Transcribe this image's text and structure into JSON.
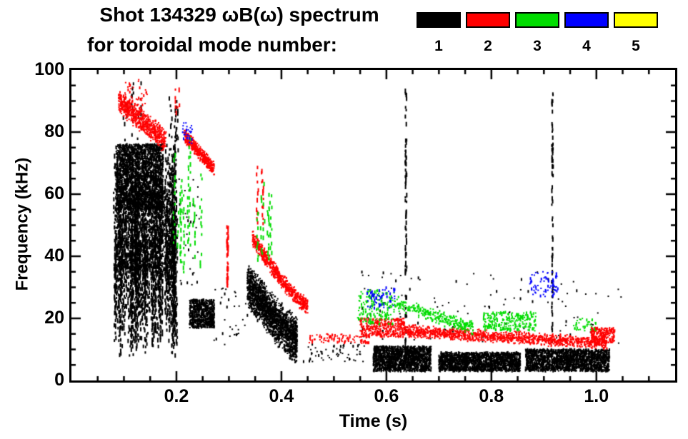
{
  "title": {
    "line1": "Shot 134329 ωB(ω) spectrum",
    "line2": "for toroidal mode number:"
  },
  "legend": [
    {
      "label": "1",
      "color": "#000000"
    },
    {
      "label": "2",
      "color": "#ff0000"
    },
    {
      "label": "3",
      "color": "#00dd00"
    },
    {
      "label": "4",
      "color": "#0000ff"
    },
    {
      "label": "5",
      "color": "#ffff00"
    }
  ],
  "chart_data": {
    "type": "scatter",
    "title": "Shot 134329 ωB(ω) spectrum for toroidal mode number 1-5",
    "xlabel": "Time (s)",
    "ylabel": "Frequency (kHz)",
    "xlim": [
      0.0,
      1.15
    ],
    "ylim": [
      0,
      100
    ],
    "xticks": [
      "0.2",
      "0.4",
      "0.6",
      "0.8",
      "1.0"
    ],
    "xtick_values": [
      0.2,
      0.4,
      0.6,
      0.8,
      1.0
    ],
    "yticks": [
      "0",
      "20",
      "40",
      "60",
      "80",
      "100"
    ],
    "ytick_values": [
      0,
      20,
      40,
      60,
      80,
      100
    ],
    "xminor": 0.05,
    "yminor": 5,
    "grid": false,
    "legend_position": "top-right",
    "clusters": [
      {
        "mode": 1,
        "kind": "vstreaks",
        "t": [
          0.08,
          0.2
        ],
        "fBase": [
          8,
          38
        ],
        "fTop": [
          42,
          78
        ],
        "streaks": 170
      },
      {
        "mode": 1,
        "kind": "blob",
        "t": [
          0.085,
          0.175
        ],
        "f": [
          55,
          76
        ],
        "count": 2200
      },
      {
        "mode": 1,
        "kind": "blob",
        "t": [
          0.085,
          0.195
        ],
        "f": [
          35,
          60
        ],
        "count": 1000
      },
      {
        "mode": 1,
        "kind": "vstreaks",
        "t": [
          0.095,
          0.14
        ],
        "fBase": [
          78,
          88
        ],
        "fTop": [
          90,
          100
        ],
        "streaks": 6
      },
      {
        "mode": 1,
        "kind": "vstreaks",
        "t": [
          0.185,
          0.205
        ],
        "fBase": [
          62,
          80
        ],
        "fTop": [
          84,
          94
        ],
        "streaks": 5
      },
      {
        "mode": 1,
        "kind": "blob",
        "t": [
          0.205,
          0.245
        ],
        "f": [
          30,
          65
        ],
        "count": 30
      },
      {
        "mode": 1,
        "kind": "blob",
        "t": [
          0.225,
          0.272
        ],
        "f": [
          17,
          26
        ],
        "count": 650
      },
      {
        "mode": 1,
        "kind": "chirp",
        "t": [
          0.335,
          0.43
        ],
        "fStart": 31,
        "fEnd": 13,
        "width": 13,
        "curve": 1.2,
        "count": 2000
      },
      {
        "mode": 1,
        "kind": "blob",
        "t": [
          0.575,
          0.685
        ],
        "f": [
          3,
          11
        ],
        "count": 1500
      },
      {
        "mode": 1,
        "kind": "blob",
        "t": [
          0.7,
          0.855
        ],
        "f": [
          3,
          9
        ],
        "count": 1700
      },
      {
        "mode": 1,
        "kind": "blob",
        "t": [
          0.865,
          1.025
        ],
        "f": [
          3,
          10
        ],
        "count": 1800
      },
      {
        "mode": 1,
        "kind": "spike",
        "t": 0.636,
        "f": [
          12,
          96
        ],
        "count": 75
      },
      {
        "mode": 1,
        "kind": "spike",
        "t": 0.915,
        "f": [
          12,
          93
        ],
        "count": 70
      },
      {
        "mode": 1,
        "kind": "blob",
        "t": [
          0.55,
          1.05
        ],
        "f": [
          12,
          35
        ],
        "count": 110
      },
      {
        "mode": 1,
        "kind": "blob",
        "t": [
          0.44,
          0.56
        ],
        "f": [
          6,
          12
        ],
        "count": 55
      },
      {
        "mode": 1,
        "kind": "blob",
        "t": [
          0.27,
          0.34
        ],
        "f": [
          10,
          30
        ],
        "count": 35
      },
      {
        "mode": 2,
        "kind": "chirp",
        "t": [
          0.09,
          0.18
        ],
        "fStart": 90,
        "fEnd": 77,
        "width": 7,
        "curve": 1.0,
        "count": 650
      },
      {
        "mode": 2,
        "kind": "blob",
        "t": [
          0.1,
          0.145
        ],
        "f": [
          86,
          97
        ],
        "count": 40
      },
      {
        "mode": 2,
        "kind": "chirp",
        "t": [
          0.215,
          0.272
        ],
        "fStart": 79,
        "fEnd": 68,
        "width": 4,
        "curve": 1.0,
        "count": 420
      },
      {
        "mode": 2,
        "kind": "spike",
        "t": 0.296,
        "f": [
          30,
          50
        ],
        "count": 45
      },
      {
        "mode": 2,
        "kind": "chirp",
        "t": [
          0.345,
          0.45
        ],
        "fStart": 46,
        "fEnd": 24,
        "width": 4.5,
        "curve": 1.3,
        "count": 650
      },
      {
        "mode": 2,
        "kind": "vstreaks",
        "t": [
          0.35,
          0.372
        ],
        "fBase": [
          50,
          58
        ],
        "fTop": [
          60,
          72
        ],
        "streaks": 5
      },
      {
        "mode": 2,
        "kind": "band",
        "t": [
          0.45,
          0.57
        ],
        "f": [
          12,
          15
        ],
        "count": 90
      },
      {
        "mode": 2,
        "kind": "blob",
        "t": [
          0.55,
          0.635
        ],
        "f": [
          14,
          20
        ],
        "count": 330
      },
      {
        "mode": 2,
        "kind": "chirp",
        "t": [
          0.63,
          1.02
        ],
        "fStart": 16,
        "fEnd": 12,
        "width": 3.5,
        "curve": 1.0,
        "count": 1200
      },
      {
        "mode": 2,
        "kind": "blob",
        "t": [
          0.99,
          1.035
        ],
        "f": [
          12,
          17
        ],
        "count": 220
      },
      {
        "mode": 2,
        "kind": "vstreaks",
        "t": [
          0.19,
          0.21
        ],
        "fBase": [
          86,
          90
        ],
        "fTop": [
          92,
          96
        ],
        "streaks": 3
      },
      {
        "mode": 3,
        "kind": "vstreaks",
        "t": [
          0.195,
          0.248
        ],
        "fBase": [
          33,
          45
        ],
        "fTop": [
          52,
          80
        ],
        "streaks": 9
      },
      {
        "mode": 3,
        "kind": "vstreaks",
        "t": [
          0.345,
          0.382
        ],
        "fBase": [
          38,
          48
        ],
        "fTop": [
          54,
          66
        ],
        "streaks": 7
      },
      {
        "mode": 3,
        "kind": "blob",
        "t": [
          0.545,
          0.615
        ],
        "f": [
          18,
          29
        ],
        "count": 170
      },
      {
        "mode": 3,
        "kind": "chirp",
        "t": [
          0.615,
          0.765
        ],
        "fStart": 25,
        "fEnd": 17,
        "width": 4,
        "curve": 1.0,
        "count": 300
      },
      {
        "mode": 3,
        "kind": "band",
        "t": [
          0.785,
          0.885
        ],
        "f": [
          16,
          22
        ],
        "count": 240
      },
      {
        "mode": 3,
        "kind": "blob",
        "t": [
          0.955,
          1.0
        ],
        "f": [
          16,
          20
        ],
        "count": 35
      },
      {
        "mode": 4,
        "kind": "blob",
        "t": [
          0.212,
          0.23
        ],
        "f": [
          76,
          83
        ],
        "count": 28
      },
      {
        "mode": 4,
        "kind": "blob",
        "t": [
          0.563,
          0.617
        ],
        "f": [
          23,
          30
        ],
        "count": 60
      },
      {
        "mode": 4,
        "kind": "blob",
        "t": [
          0.873,
          0.927
        ],
        "f": [
          27,
          35
        ],
        "count": 70
      }
    ]
  }
}
